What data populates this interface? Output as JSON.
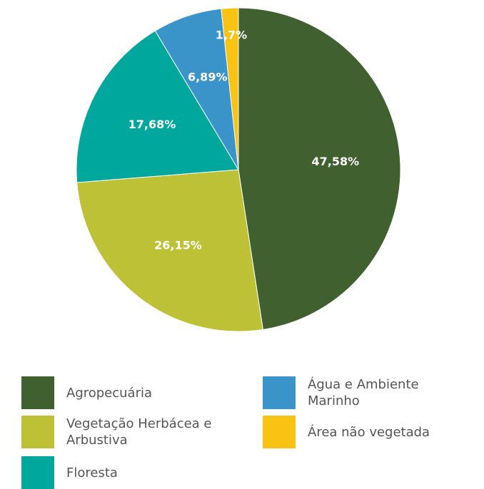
{
  "chart_data": {
    "type": "pie",
    "categories": [
      "Agropecuária",
      "Vegetação Herbácea e Arbustiva",
      "Floresta",
      "Água e Ambiente Marinho",
      "Área não vegetada"
    ],
    "values": [
      47.58,
      26.15,
      17.68,
      6.89,
      1.7
    ],
    "value_labels": [
      "47,58%",
      "26,15%",
      "17,68%",
      "6,89%",
      "1,7%"
    ],
    "colors": [
      "#41602f",
      "#bcc135",
      "#00a79d",
      "#3a94c9",
      "#f8c312"
    ]
  }
}
